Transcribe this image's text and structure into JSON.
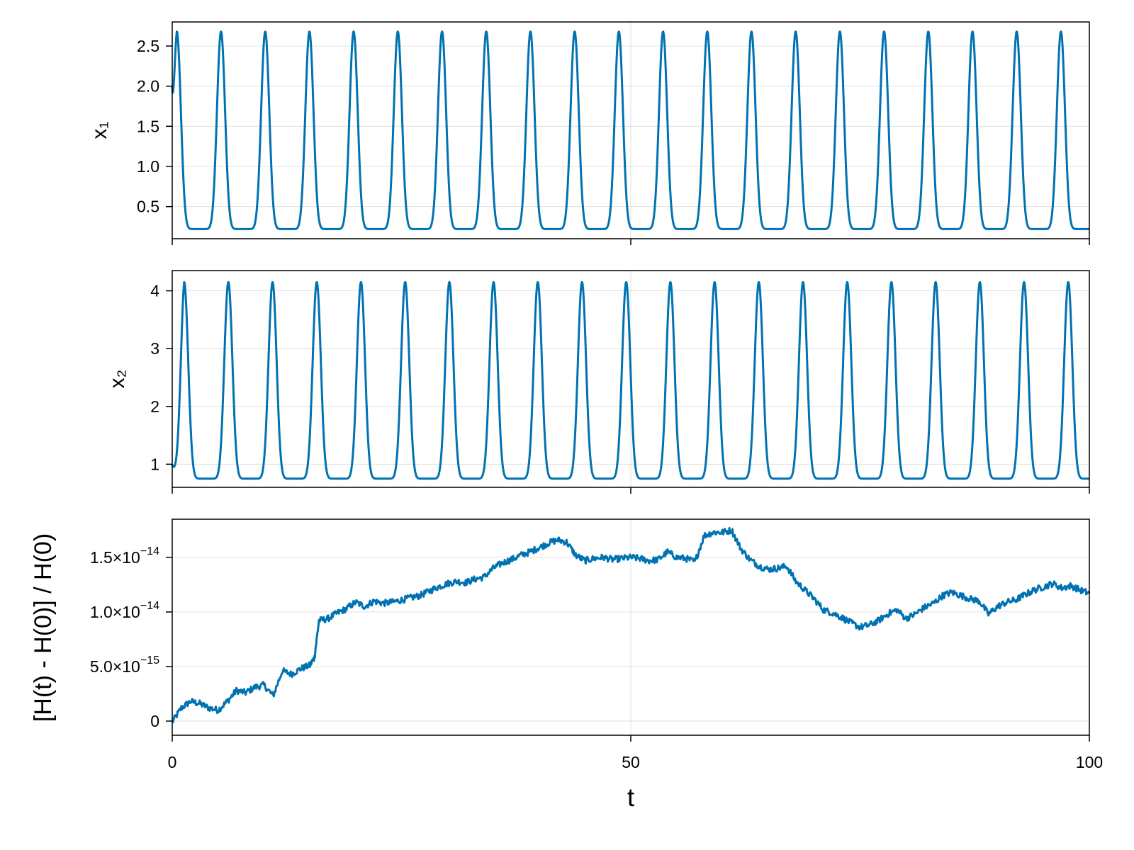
{
  "colors": {
    "line": "#0072B2",
    "background": "#ffffff"
  },
  "chart_data": [
    {
      "type": "line",
      "id": "x1",
      "ylabel": "x₁",
      "xlabel": "",
      "xlim": [
        0,
        100
      ],
      "ylim": [
        0.1,
        2.8
      ],
      "xticks": [
        0,
        50,
        100
      ],
      "xticklabels_visible": false,
      "yticks": [
        0.5,
        1.0,
        1.5,
        2.0,
        2.5
      ],
      "yticklabels": [
        "0.5",
        "1.0",
        "1.5",
        "2.0",
        "2.5"
      ],
      "grid": true,
      "series": [
        {
          "x_start": 0,
          "x_end": 100,
          "initial": 2.0,
          "min": 0.22,
          "max": 2.68,
          "period": 4.82,
          "first_peak": 0.5,
          "peak_count": 21
        }
      ]
    },
    {
      "type": "line",
      "id": "x2",
      "ylabel": "x₂",
      "xlabel": "",
      "xlim": [
        0,
        100
      ],
      "ylim": [
        0.6,
        4.35
      ],
      "xticks": [
        0,
        50,
        100
      ],
      "xticklabels_visible": false,
      "yticks": [
        1,
        2,
        3,
        4
      ],
      "yticklabels": [
        "1",
        "2",
        "3",
        "4"
      ],
      "grid": true,
      "series": [
        {
          "x_start": 0,
          "x_end": 100,
          "initial": 1.0,
          "min": 0.75,
          "max": 4.15,
          "period": 4.82,
          "first_peak": 1.3,
          "peak_count": 21
        }
      ]
    },
    {
      "type": "line",
      "id": "relative-energy-error",
      "ylabel": "[H(t) - H(0)] / H(0)",
      "xlabel": "t",
      "xlim": [
        0,
        100
      ],
      "ylim": [
        -1.3e-15,
        1.85e-14
      ],
      "xticks": [
        0,
        50,
        100
      ],
      "xticklabels": [
        "0",
        "50",
        "100"
      ],
      "yticks": [
        0,
        5e-15,
        1e-14,
        1.5e-14
      ],
      "yticklabels": [
        {
          "mantissa": "0",
          "exponent": ""
        },
        {
          "mantissa": "5.0×10",
          "exponent": "−15"
        },
        {
          "mantissa": "1.0×10",
          "exponent": "−14"
        },
        {
          "mantissa": "1.5×10",
          "exponent": "−14"
        }
      ],
      "grid": true,
      "series": [
        {
          "x": [
            0,
            1,
            2,
            3,
            4,
            5,
            6,
            7,
            8,
            9,
            10,
            11,
            12,
            13,
            14,
            15,
            15.5,
            16,
            17,
            18,
            19,
            20,
            21,
            22,
            23,
            24,
            25,
            26,
            27,
            28,
            29,
            30,
            31,
            32,
            33,
            34,
            35,
            36,
            37,
            38,
            39,
            40,
            41,
            42,
            43,
            44,
            45,
            46,
            47,
            48,
            49,
            50,
            51,
            52,
            53,
            54,
            55,
            56,
            57,
            58,
            59,
            60,
            61,
            62,
            63,
            64,
            65,
            66,
            67,
            68,
            69,
            70,
            71,
            72,
            73,
            74,
            75,
            76,
            77,
            78,
            79,
            80,
            81,
            82,
            83,
            84,
            85,
            86,
            87,
            88,
            89,
            90,
            91,
            92,
            93,
            94,
            95,
            96,
            97,
            98,
            99,
            100
          ],
          "y": [
            -1e-16,
            1.2e-15,
            1.8e-15,
            1.6e-15,
            1.2e-15,
            1e-15,
            1.8e-15,
            2.8e-15,
            2.6e-15,
            3.1e-15,
            3.3e-15,
            2.3e-15,
            4.6e-15,
            4.3e-15,
            4.8e-15,
            5.1e-15,
            5.8e-15,
            9.2e-15,
            9.4e-15,
            9.9e-15,
            1.03e-14,
            1.09e-14,
            1.05e-14,
            1.1e-14,
            1.08e-14,
            1.09e-14,
            1.11e-14,
            1.13e-14,
            1.15e-14,
            1.19e-14,
            1.23e-14,
            1.26e-14,
            1.28e-14,
            1.27e-14,
            1.3e-14,
            1.32e-14,
            1.4e-14,
            1.45e-14,
            1.48e-14,
            1.52e-14,
            1.55e-14,
            1.59e-14,
            1.63e-14,
            1.66e-14,
            1.64e-14,
            1.52e-14,
            1.47e-14,
            1.49e-14,
            1.5e-14,
            1.48e-14,
            1.49e-14,
            1.5e-14,
            1.49e-14,
            1.47e-14,
            1.48e-14,
            1.55e-14,
            1.5e-14,
            1.49e-14,
            1.46e-14,
            1.7e-14,
            1.73e-14,
            1.73e-14,
            1.75e-14,
            1.58e-14,
            1.48e-14,
            1.42e-14,
            1.39e-14,
            1.4e-14,
            1.42e-14,
            1.28e-14,
            1.2e-14,
            1.12e-14,
            1.02e-14,
            9.9e-15,
            9.5e-15,
            9e-15,
            8.6e-15,
            8.8e-15,
            9.2e-15,
            9.8e-15,
            1.02e-14,
            9.4e-15,
            9.8e-15,
            1.04e-14,
            1.08e-14,
            1.15e-14,
            1.18e-14,
            1.15e-14,
            1.12e-14,
            1.1e-14,
            9.8e-15,
            1.05e-14,
            1.09e-14,
            1.11e-14,
            1.16e-14,
            1.2e-14,
            1.23e-14,
            1.26e-14,
            1.22e-14,
            1.24e-14,
            1.2e-14,
            1.17e-14
          ]
        }
      ]
    }
  ]
}
